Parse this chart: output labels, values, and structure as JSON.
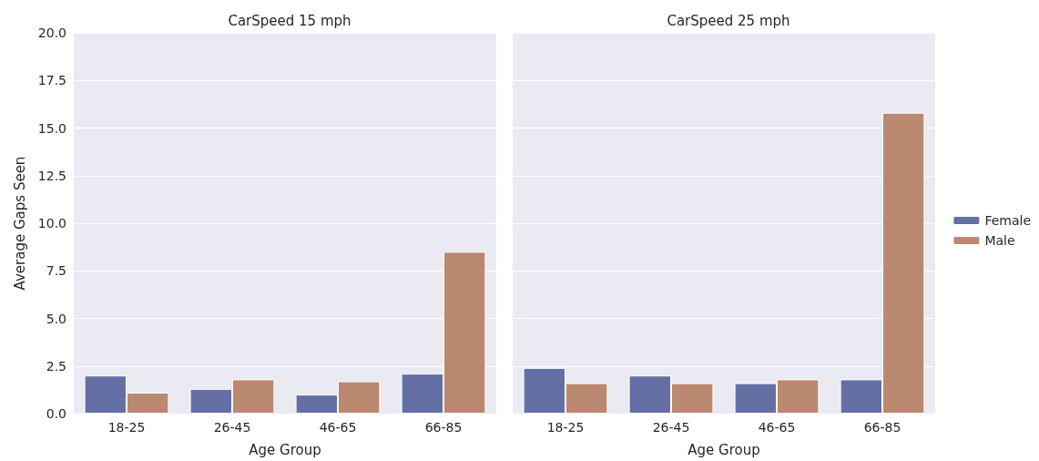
{
  "chart_data": [
    {
      "type": "bar",
      "title": "CarSpeed 15 mph",
      "xlabel": "Age Group",
      "ylabel": "Average Gaps Seen",
      "categories": [
        "18-25",
        "26-45",
        "46-65",
        "66-85"
      ],
      "series": [
        {
          "color": "#6470a5",
          "values": [
            2.0,
            1.3,
            1.0,
            2.1
          ]
        },
        {
          "color": "#bb8870",
          "values": [
            1.1,
            1.8,
            1.7,
            8.5
          ]
        }
      ],
      "ylim": [
        0,
        20
      ],
      "yticks": [
        {
          "value": 0,
          "label": "0.0"
        },
        2.5,
        {
          "value": 5,
          "label": "5.0"
        },
        7.5,
        {
          "value": 10,
          "label": "10.0"
        },
        12.5,
        {
          "value": 15,
          "label": "15.0"
        },
        17.5,
        {
          "value": 20,
          "label": "20.0"
        }
      ],
      "grid": "y"
    },
    {
      "type": "bar",
      "title": "CarSpeed 25 mph",
      "xlabel": "Age Group",
      "categories": [
        "18-25",
        "26-45",
        "46-65",
        "66-85"
      ],
      "series": [
        {
          "name": "Female",
          "color": "#6470a5",
          "values": [
            2.4,
            2.0,
            1.6,
            1.8
          ]
        },
        {
          "name": "Male",
          "color": "#bb8870",
          "values": [
            1.6,
            1.6,
            1.8,
            15.8
          ]
        }
      ],
      "ylim": [
        0,
        20
      ],
      "yticks": [
        0,
        2.5,
        5,
        7.5,
        10,
        12.5,
        15,
        17.5,
        20
      ],
      "grid": "y",
      "tick_labels": "x",
      "legend": "right"
    }
  ]
}
